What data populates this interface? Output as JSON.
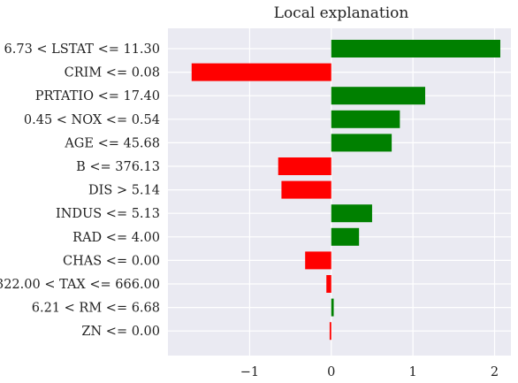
{
  "chart_data": {
    "type": "bar",
    "orientation": "horizontal",
    "title": "Local explanation",
    "xlabel": "",
    "ylabel": "",
    "xlim": [
      -2.0,
      2.2
    ],
    "xticks": [
      -1,
      0,
      1,
      2
    ],
    "xtick_labels": [
      "−1",
      "0",
      "1",
      "2"
    ],
    "grid": true,
    "categories": [
      "6.73 < LSTAT <= 11.30",
      "CRIM <= 0.08",
      "PRTATIO <= 17.40",
      "0.45 < NOX <= 0.54",
      "AGE <= 45.68",
      "B <= 376.13",
      "DIS > 5.14",
      "INDUS <= 5.13",
      "RAD <= 4.00",
      "CHAS <= 0.00",
      "322.00 < TAX <= 666.00",
      "6.21 < RM <= 6.68",
      "ZN <= 0.00"
    ],
    "values": [
      2.07,
      -1.71,
      1.15,
      0.84,
      0.74,
      -0.65,
      -0.61,
      0.5,
      0.34,
      -0.32,
      -0.06,
      0.03,
      -0.02
    ],
    "colors": {
      "positive": "#008000",
      "negative": "#ff0000",
      "background": "#eaeaf2",
      "grid": "#ffffff"
    }
  }
}
